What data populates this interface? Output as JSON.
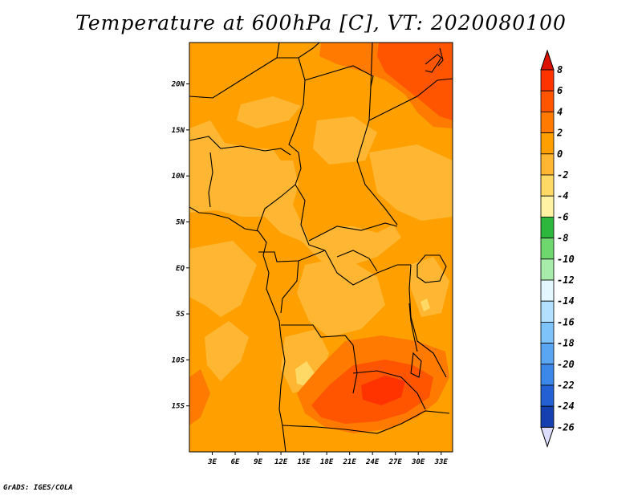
{
  "title": "Temperature at 600hPa [C], VT: 2020080100",
  "footer": "GrADS: IGES/COLA",
  "lat_axis": {
    "labels": [
      "20N",
      "15N",
      "10N",
      "5N",
      "EQ",
      "5S",
      "10S",
      "15S"
    ],
    "values": [
      20,
      15,
      10,
      5,
      0,
      -5,
      -10,
      -15
    ]
  },
  "lon_axis": {
    "labels": [
      "3E",
      "6E",
      "9E",
      "12E",
      "15E",
      "18E",
      "21E",
      "24E",
      "27E",
      "30E",
      "33E"
    ],
    "values": [
      3,
      6,
      9,
      12,
      15,
      18,
      21,
      24,
      27,
      30,
      33
    ]
  },
  "colorbar": {
    "labels": [
      "8",
      "6",
      "4",
      "2",
      "0",
      "-2",
      "-4",
      "-6",
      "-8",
      "-10",
      "-12",
      "-14",
      "-16",
      "-18",
      "-20",
      "-22",
      "-24",
      "-26"
    ],
    "colors": [
      "#ff3300",
      "#ff5500",
      "#ff7a00",
      "#ffa000",
      "#ffb733",
      "#ffd966",
      "#fff3a3",
      "#2db83d",
      "#6ed86e",
      "#a8ecac",
      "#e4f7ff",
      "#b3e0ff",
      "#7fc3fb",
      "#5aa6f2",
      "#3c88e8",
      "#2260d4",
      "#1440b0",
      "#0b1e80",
      "#040a50"
    ],
    "top_triangle_color": "#dd1100",
    "bottom_triangle_color": "#ddddff"
  },
  "field_colors": {
    "base": "#ffa000",
    "warm": "#ff7a00",
    "hot": "#ff5500",
    "hottest": "#ff3300",
    "cool": "#ffb733",
    "coolest": "#ffd966"
  }
}
